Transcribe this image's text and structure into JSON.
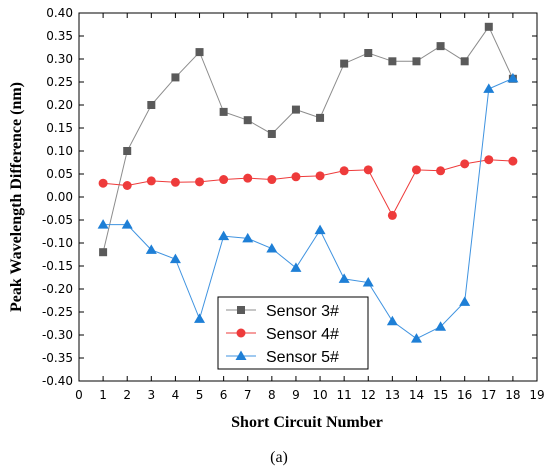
{
  "chart_data": {
    "type": "line",
    "xlabel": "Short Circuit Number",
    "ylabel": "Peak Wavelength Difference (nm)",
    "caption": "(a)",
    "xlim": [
      0,
      19
    ],
    "ylim": [
      -0.4,
      0.4
    ],
    "xticks": [
      0,
      1,
      2,
      3,
      4,
      5,
      6,
      7,
      8,
      9,
      10,
      11,
      12,
      13,
      14,
      15,
      16,
      17,
      18,
      19
    ],
    "xtick_labels": [
      "0",
      "1",
      "2",
      "3",
      "4",
      "5",
      "6",
      "7",
      "8",
      "9",
      "10",
      "11",
      "12",
      "13",
      "14",
      "15",
      "16",
      "17",
      "18",
      "19"
    ],
    "yticks": [
      0.4,
      0.35,
      0.3,
      0.25,
      0.2,
      0.15,
      0.1,
      0.05,
      0.0,
      -0.05,
      -0.1,
      -0.15,
      -0.2,
      -0.25,
      -0.3,
      -0.35,
      -0.4
    ],
    "ytick_labels": [
      "0.40",
      "0.35",
      "0.30",
      "0.25",
      "0.20",
      "0.15",
      "0.10",
      "0.05",
      "0.00",
      "-0.05",
      "-0.10",
      "-0.15",
      "-0.20",
      "-0.25",
      "-0.30",
      "-0.35",
      "-0.40"
    ],
    "grid": false,
    "legend_position": "bottom-center",
    "x": [
      1,
      2,
      3,
      4,
      5,
      6,
      7,
      8,
      9,
      10,
      11,
      12,
      13,
      14,
      15,
      16,
      17,
      18
    ],
    "series": [
      {
        "name": "Sensor  3#",
        "marker": "square",
        "color": "#5a5a5a",
        "line_color": "#8c8c8c",
        "values": [
          -0.12,
          0.1,
          0.2,
          0.26,
          0.315,
          0.185,
          0.167,
          0.137,
          0.19,
          0.172,
          0.29,
          0.313,
          0.295,
          0.295,
          0.328,
          0.295,
          0.37,
          0.257
        ]
      },
      {
        "name": "Sensor  4#",
        "marker": "circle",
        "color": "#ee3b3b",
        "line_color": "#ee3b3b",
        "values": [
          0.03,
          0.025,
          0.035,
          0.032,
          0.033,
          0.038,
          0.041,
          0.038,
          0.044,
          0.046,
          0.057,
          0.059,
          -0.04,
          0.059,
          0.057,
          0.072,
          0.081,
          0.078
        ]
      },
      {
        "name": "Sensor  5#",
        "marker": "triangle",
        "color": "#1e7fd6",
        "line_color": "#3f93e0",
        "values": [
          -0.06,
          -0.06,
          -0.115,
          -0.135,
          -0.265,
          -0.085,
          -0.09,
          -0.112,
          -0.154,
          -0.072,
          -0.178,
          -0.186,
          -0.27,
          -0.308,
          -0.282,
          -0.228,
          0.235,
          0.258
        ]
      }
    ]
  }
}
